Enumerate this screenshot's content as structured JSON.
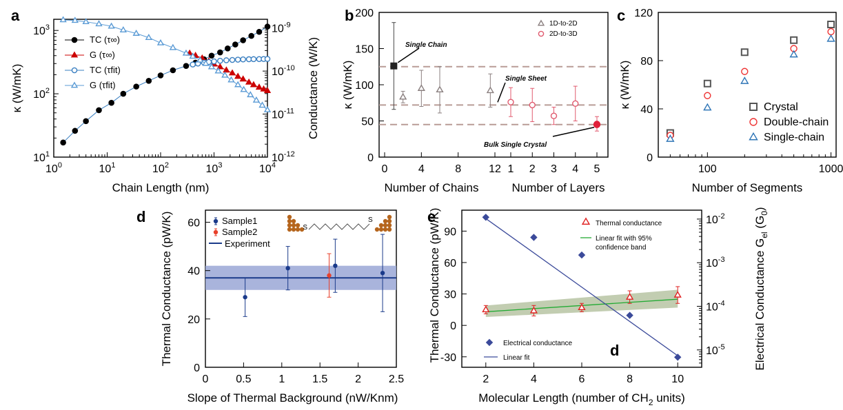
{
  "chart_data": [
    {
      "type": "scatter",
      "panel_label": "a",
      "xlabel": "Chain Length (nm)",
      "ylabel": "κ (W/mK)",
      "y2label": "Conductance (W/K)",
      "xscale": "log",
      "yscale": "log",
      "y2scale": "log",
      "xlim": [
        1,
        10000
      ],
      "ylim": [
        10,
        1500
      ],
      "y2lim": [
        1e-12,
        1.6e-09
      ],
      "xticks": [
        "10^0",
        "10^1",
        "10^2",
        "10^3",
        "10^4"
      ],
      "yticks": [
        "10^1",
        "10^2",
        "10^3"
      ],
      "y2ticks": [
        "10^-12",
        "10^-11",
        "10^-10",
        "10^-9"
      ],
      "legend_position": "top-left",
      "series": [
        {
          "name": "TC (τ∞)",
          "axis": "left",
          "color": "#000000",
          "marker": "filled-circle",
          "x": [
            1.5,
            2.5,
            4,
            7,
            12,
            20,
            35,
            60,
            100,
            170,
            300,
            450,
            650,
            900,
            1300,
            1800,
            2500,
            3500,
            5000,
            7000,
            10000
          ],
          "y": [
            17,
            26,
            37,
            55,
            72,
            100,
            130,
            160,
            195,
            235,
            275,
            310,
            350,
            400,
            450,
            520,
            600,
            700,
            820,
            950,
            1150
          ]
        },
        {
          "name": "G (τ∞)",
          "axis": "right",
          "color": "#cc0000",
          "marker": "filled-triangle",
          "x": [
            350,
            450,
            600,
            800,
            1000,
            1300,
            1700,
            2200,
            2800,
            3500,
            4500,
            5500,
            7000,
            8500,
            10000
          ],
          "y": [
            2.6e-10,
            2.3e-10,
            2e-10,
            1.7e-10,
            1.45e-10,
            1.25e-10,
            1.05e-10,
            9e-11,
            7.5e-11,
            6.5e-11,
            5.5e-11,
            4.8e-11,
            4.2e-11,
            3.8e-11,
            3.5e-11
          ]
        },
        {
          "name": "TC (τfit)",
          "axis": "left",
          "color": "#3a7fc1",
          "marker": "open-circle",
          "x": [
            400,
            500,
            650,
            800,
            1000,
            1300,
            1700,
            2200,
            2800,
            3500,
            4500,
            5500,
            7000,
            8500,
            10000
          ],
          "y": [
            290,
            300,
            310,
            318,
            325,
            332,
            338,
            342,
            346,
            349,
            351,
            352,
            353,
            354,
            355
          ]
        },
        {
          "name": "G (τfit)",
          "axis": "right",
          "color": "#5b9bd5",
          "marker": "open-triangle",
          "x": [
            1.5,
            2.5,
            4,
            7,
            12,
            20,
            35,
            60,
            100,
            170,
            300,
            400,
            550,
            700,
            900,
            1200,
            1600,
            2100,
            2800,
            3600,
            4800,
            6200,
            8000,
            10000
          ],
          "y": [
            1.55e-09,
            1.5e-09,
            1.4e-09,
            1.25e-09,
            1.1e-09,
            9e-10,
            7.5e-10,
            6e-10,
            4.5e-10,
            3.5e-10,
            2.6e-10,
            2.2e-10,
            1.8e-10,
            1.5e-10,
            1.25e-10,
            1e-10,
            8e-11,
            6.2e-11,
            4.8e-11,
            3.7e-11,
            2.8e-11,
            2.1e-11,
            1.6e-11,
            1.25e-11
          ]
        }
      ]
    },
    {
      "type": "scatter",
      "panel_label": "b",
      "ylabel": "κ (W/mK)",
      "xlabel_left": "Number of Chains",
      "xlabel_right": "Number of Layers",
      "ylim": [
        0,
        200
      ],
      "yticks": [
        "0",
        "50",
        "100",
        "150",
        "200"
      ],
      "xticks_left": [
        "0",
        "4",
        "8",
        "12"
      ],
      "xticks_right": [
        "1",
        "2",
        "3",
        "4",
        "5"
      ],
      "legend_position": "top-right",
      "reference_lines": [
        125,
        72,
        45
      ],
      "series": [
        {
          "name": "1D-to-2D",
          "color": "#8a7f7f",
          "marker": "open-triangle",
          "x": [
            2,
            4,
            6,
            11.5
          ],
          "y": [
            83,
            95,
            93,
            92
          ],
          "yerr": [
            8,
            25,
            32,
            23
          ]
        },
        {
          "name": "2D-to-3D",
          "color": "#e05a6e",
          "marker": "open-circle",
          "x": [
            1,
            2,
            3,
            4,
            5
          ],
          "y": [
            76,
            72,
            57,
            74,
            46
          ],
          "yerr": [
            20,
            23,
            12,
            24,
            10
          ]
        }
      ],
      "highlight_points": [
        {
          "label": "Single Chain",
          "x_axis": "chains",
          "x": 1,
          "y": 126,
          "yerr": 60
        },
        {
          "label": "Single Sheet",
          "x_axis": "chains",
          "x": 12,
          "y": 72
        },
        {
          "label": "Bulk Single Crystal",
          "x_axis": "layers",
          "x": 5,
          "y": 45
        }
      ]
    },
    {
      "type": "scatter",
      "panel_label": "c",
      "xlabel": "Number of Segments",
      "ylabel": "κ (W/mK)",
      "xscale": "log",
      "xlim": [
        40,
        1100
      ],
      "ylim": [
        0,
        120
      ],
      "xticks": [
        "100",
        "1000"
      ],
      "yticks": [
        "0",
        "40",
        "80",
        "120"
      ],
      "legend_position": "bottom-right",
      "categories": [
        50,
        100,
        200,
        500,
        1000
      ],
      "series": [
        {
          "name": "Crystal",
          "color": "#555555",
          "marker": "open-square",
          "values": [
            20,
            61,
            87,
            97,
            110
          ]
        },
        {
          "name": "Double-chain",
          "color": "#ee3333",
          "marker": "open-circle",
          "values": [
            18,
            51,
            71,
            90,
            104
          ]
        },
        {
          "name": "Single-chain",
          "color": "#2e75b6",
          "marker": "open-triangle",
          "values": [
            15,
            41,
            63,
            85,
            98
          ]
        }
      ]
    },
    {
      "type": "scatter",
      "panel_label": "d",
      "xlabel": "Slope of Thermal Background (nW/Knm)",
      "ylabel": "Thermal Conductance (pW/K)",
      "xlim": [
        0,
        2.5
      ],
      "ylim": [
        0,
        65
      ],
      "xticks": [
        "0",
        "0.5",
        "1",
        "1.5",
        "2",
        "2.5"
      ],
      "yticks": [
        "0",
        "20",
        "40",
        "60"
      ],
      "legend_position": "top-left",
      "molecule_label": "S",
      "series": [
        {
          "name": "Sample1",
          "color": "#1a3a8a",
          "marker": "filled-circle",
          "x": [
            0.52,
            1.08,
            1.7,
            2.32
          ],
          "y": [
            29,
            41,
            42,
            39
          ],
          "yerr": [
            8,
            9,
            11,
            16
          ]
        },
        {
          "name": "Sample2",
          "color": "#e8412c",
          "marker": "filled-circle",
          "x": [
            1.62
          ],
          "y": [
            38
          ],
          "yerr": [
            9
          ]
        }
      ],
      "experiment": {
        "name": "Experiment",
        "value": 37,
        "band": [
          32,
          42
        ],
        "color": "#1a3a8a"
      }
    },
    {
      "type": "scatter",
      "panel_label": "e",
      "inset_label": "d",
      "xlabel": "Molecular Length (number of CH",
      "xlabel_sub": "2",
      "xlabel_end": " units)",
      "ylabel": "Thermal Conductance (pW/K)",
      "y2label": "Electrical Conductance G",
      "y2label_sub": "el",
      "y2label_end": " (G",
      "y2label_sub2": "0",
      "y2label_close": ")",
      "xlim": [
        1,
        11
      ],
      "ylim": [
        -40,
        110
      ],
      "y2scale": "log",
      "y2lim": [
        4e-06,
        0.016
      ],
      "xticks": [
        "2",
        "4",
        "6",
        "8",
        "10"
      ],
      "yticks": [
        "-30",
        "0",
        "30",
        "60",
        "90"
      ],
      "y2ticks": [
        "10^-5",
        "10^-4",
        "10^-3",
        "10^-2"
      ],
      "series": [
        {
          "name": "Thermal conductance",
          "axis": "left",
          "color": "#e02020",
          "marker": "open-triangle",
          "x": [
            2,
            4,
            6,
            8,
            10
          ],
          "y": [
            15,
            14,
            17,
            27,
            29
          ],
          "yerr": [
            4,
            5,
            4,
            6,
            8
          ]
        },
        {
          "name": "Electrical conductance",
          "axis": "right",
          "color": "#3b4a9a",
          "marker": "filled-diamond",
          "x": [
            2,
            4,
            6,
            8,
            10
          ],
          "y": [
            0.011,
            0.0038,
            0.0015,
            6.2e-05,
            6.8e-06
          ]
        }
      ],
      "fits": [
        {
          "name": "Linear fit with 95%",
          "name_line2": "confidence band",
          "axis": "left",
          "color": "#22aa33",
          "band_color": "#a8b890",
          "x": [
            2,
            10
          ],
          "y": [
            13,
            25
          ],
          "band_low": [
            8,
            17
          ],
          "band_high": [
            19,
            34
          ]
        },
        {
          "name": "Linear fit",
          "axis": "left",
          "color": "#3b4a9a",
          "x": [
            2,
            10
          ],
          "y": [
            102,
            -29
          ]
        }
      ]
    }
  ]
}
